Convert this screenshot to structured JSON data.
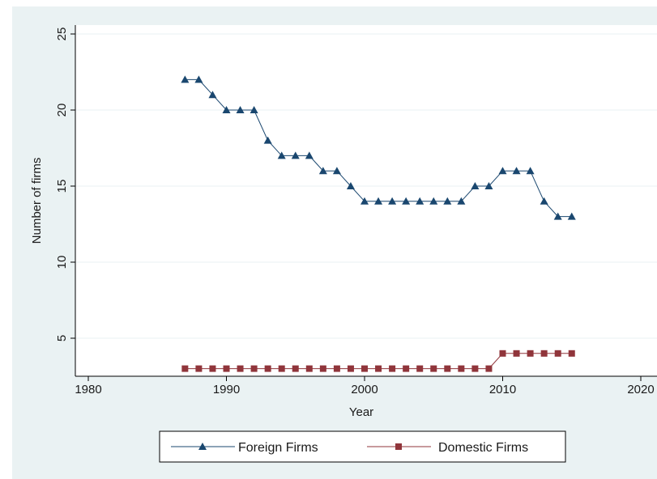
{
  "chart_data": {
    "type": "line",
    "title": "",
    "xlabel": "Year",
    "ylabel": "Number of firms",
    "xlim": [
      1978,
      2021
    ],
    "ylim": [
      2.5,
      25.5
    ],
    "xticks": [
      1980,
      1990,
      2000,
      2010,
      2020
    ],
    "yticks": [
      5,
      10,
      15,
      20,
      25
    ],
    "grid": true,
    "legend_position": "bottom",
    "x": [
      1987,
      1988,
      1989,
      1990,
      1991,
      1992,
      1993,
      1994,
      1995,
      1996,
      1997,
      1998,
      1999,
      2000,
      2001,
      2002,
      2003,
      2004,
      2005,
      2006,
      2007,
      2008,
      2009,
      2010,
      2011,
      2012,
      2013,
      2014,
      2015
    ],
    "series": [
      {
        "name": "Foreign Firms",
        "color": "#1a476f",
        "marker": "triangle",
        "values": [
          22,
          22,
          21,
          20,
          20,
          20,
          18,
          17,
          17,
          17,
          16,
          16,
          15,
          14,
          14,
          14,
          14,
          14,
          14,
          14,
          14,
          15,
          15,
          16,
          16,
          16,
          14,
          13,
          13
        ]
      },
      {
        "name": "Domestic Firms",
        "color": "#90353b",
        "marker": "square",
        "values": [
          3,
          3,
          3,
          3,
          3,
          3,
          3,
          3,
          3,
          3,
          3,
          3,
          3,
          3,
          3,
          3,
          3,
          3,
          3,
          3,
          3,
          3,
          3,
          4,
          4,
          4,
          4,
          4,
          4
        ]
      }
    ]
  },
  "colors": {
    "outer_background": "#eaf2f3",
    "plot_background": "#ffffff",
    "grid": "#eaf2f3"
  }
}
